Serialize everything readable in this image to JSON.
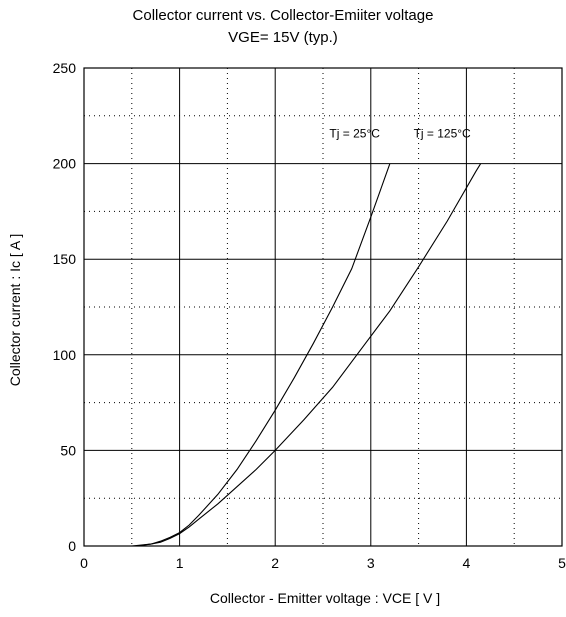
{
  "chart_data": {
    "type": "line",
    "title": "Collector current  vs.  Collector-Emiiter voltage",
    "subtitle": "VGE= 15V (typ.)",
    "xlabel": "Collector - Emitter voltage : VCE [ V ]",
    "ylabel": "Collector current : Ic [ A ]",
    "xlim": [
      0,
      5
    ],
    "ylim": [
      0,
      250
    ],
    "x_ticks": [
      0,
      1,
      2,
      3,
      4,
      5
    ],
    "y_ticks": [
      0,
      50,
      100,
      150,
      200,
      250
    ],
    "grid": {
      "major": "solid",
      "minor": "dotted"
    },
    "series": [
      {
        "name": "Tj = 25°C",
        "x": [
          0.55,
          0.7,
          0.8,
          0.9,
          1.0,
          1.1,
          1.2,
          1.4,
          1.6,
          1.8,
          2.0,
          2.2,
          2.4,
          2.6,
          2.8,
          3.0,
          3.2
        ],
        "y": [
          0,
          1,
          2.5,
          4.5,
          7,
          11,
          16,
          27,
          40,
          55,
          71,
          88,
          106,
          125,
          145,
          172,
          200
        ]
      },
      {
        "name": "Tj = 125°C",
        "x": [
          0.5,
          0.7,
          0.8,
          0.9,
          1.0,
          1.1,
          1.2,
          1.4,
          1.6,
          1.8,
          2.0,
          2.3,
          2.6,
          2.9,
          3.2,
          3.5,
          3.8,
          4.1,
          4.15
        ],
        "y": [
          0,
          1,
          2,
          4,
          6.5,
          10,
          14,
          22,
          31,
          40,
          50,
          66,
          83,
          103,
          123,
          146,
          170,
          196,
          200
        ]
      }
    ]
  },
  "labels": {
    "tick_x": [
      "0",
      "1",
      "2",
      "3",
      "4",
      "5"
    ],
    "tick_y": [
      "0",
      "50",
      "100",
      "150",
      "200",
      "250"
    ]
  }
}
